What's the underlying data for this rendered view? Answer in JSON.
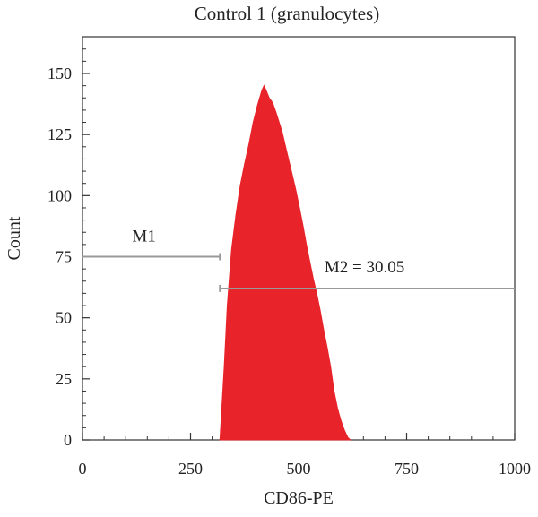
{
  "chart_data": {
    "type": "area",
    "title": "Control 1 (granulocytes)",
    "xlabel": "CD86-PE",
    "ylabel": "Count",
    "xlim": [
      0,
      1000
    ],
    "ylim": [
      0,
      165
    ],
    "x_ticks": [
      0,
      250,
      500,
      750,
      1000
    ],
    "y_ticks": [
      0,
      25,
      50,
      75,
      100,
      125,
      150
    ],
    "grid": false,
    "series": [
      {
        "color": "#e8242a",
        "x": [
          318,
          328,
          335,
          345,
          355,
          365,
          375,
          385,
          395,
          405,
          415,
          420,
          425,
          432,
          440,
          448,
          455,
          462,
          470,
          478,
          486,
          494,
          502,
          510,
          518,
          526,
          534,
          542,
          550,
          558,
          566,
          574,
          582,
          590,
          598,
          606,
          614,
          620
        ],
        "values": [
          0,
          30,
          55,
          78,
          92,
          104,
          113,
          121,
          130,
          137,
          143,
          145,
          143,
          140,
          138,
          134,
          130,
          126,
          120,
          114,
          108,
          102,
          95,
          88,
          80,
          73,
          66,
          60,
          53,
          45,
          38,
          30,
          20,
          13,
          8,
          4,
          1,
          0
        ]
      }
    ],
    "markers": [
      {
        "label": "M1",
        "x_start": 0,
        "x_end": 318,
        "y": 75
      },
      {
        "label": "M2 = 30.05",
        "x_start": 318,
        "x_end": 1000,
        "y": 62
      }
    ],
    "colors": {
      "fill": "#e8242a",
      "axis": "#333333",
      "marker": "#999999"
    }
  }
}
